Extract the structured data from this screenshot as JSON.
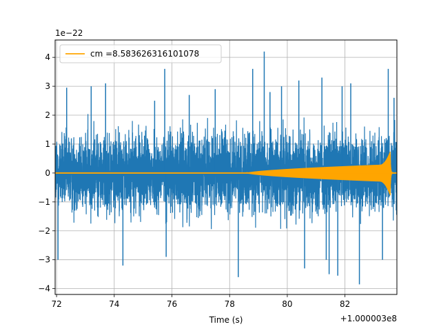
{
  "chart_data": {
    "type": "line",
    "xlabel": "Time (s)",
    "ylabel": "",
    "x_offset_label": "+1.000003e8",
    "y_scale_label": "1e−22",
    "xlim": [
      71.95,
      83.8
    ],
    "ylim": [
      -4.2,
      4.6
    ],
    "xticks": [
      72,
      74,
      76,
      78,
      80,
      82
    ],
    "xtick_labels": [
      "72",
      "74",
      "76",
      "78",
      "80",
      "82"
    ],
    "yticks": [
      -4,
      -3,
      -2,
      -1,
      0,
      1,
      2,
      3,
      4
    ],
    "ytick_labels": [
      "−4",
      "−3",
      "−2",
      "−1",
      "0",
      "1",
      "2",
      "3",
      "4"
    ],
    "grid": true,
    "legend": {
      "placement": "top-left"
    },
    "series": [
      {
        "name": "",
        "color": "#1f77b4",
        "kind": "noise",
        "envelope": [
          1.6,
          2.3
        ],
        "x_range": [
          71.95,
          83.8
        ],
        "peaks": [
          {
            "x": 72.05,
            "y": -3.0
          },
          {
            "x": 72.35,
            "y": 2.95
          },
          {
            "x": 73.2,
            "y": 3.0
          },
          {
            "x": 73.7,
            "y": 3.1
          },
          {
            "x": 74.3,
            "y": -3.2
          },
          {
            "x": 75.4,
            "y": 2.5
          },
          {
            "x": 75.75,
            "y": 3.6
          },
          {
            "x": 75.8,
            "y": -2.9
          },
          {
            "x": 76.6,
            "y": 2.7
          },
          {
            "x": 77.5,
            "y": 2.9
          },
          {
            "x": 78.3,
            "y": -3.6
          },
          {
            "x": 78.8,
            "y": 3.6
          },
          {
            "x": 79.2,
            "y": 4.2
          },
          {
            "x": 79.4,
            "y": 2.8
          },
          {
            "x": 79.8,
            "y": 3.0
          },
          {
            "x": 80.4,
            "y": 3.2
          },
          {
            "x": 80.6,
            "y": -3.3
          },
          {
            "x": 81.2,
            "y": 3.3
          },
          {
            "x": 81.35,
            "y": -3.0
          },
          {
            "x": 81.45,
            "y": -3.5
          },
          {
            "x": 81.75,
            "y": -3.55
          },
          {
            "x": 81.9,
            "y": 3.0
          },
          {
            "x": 82.2,
            "y": 3.1
          },
          {
            "x": 82.5,
            "y": -3.85
          },
          {
            "x": 83.3,
            "y": -3.0
          },
          {
            "x": 83.5,
            "y": 3.6
          },
          {
            "x": 83.7,
            "y": 2.6
          }
        ]
      },
      {
        "name": "cm =8.583626316101078",
        "color": "#ffa500",
        "kind": "chirp",
        "start_x": 78.6,
        "merger_x": 83.57,
        "end_x": 83.8,
        "peak_max": 0.75,
        "peak_min": -0.55,
        "mid_amplitude": 0.3
      }
    ]
  }
}
